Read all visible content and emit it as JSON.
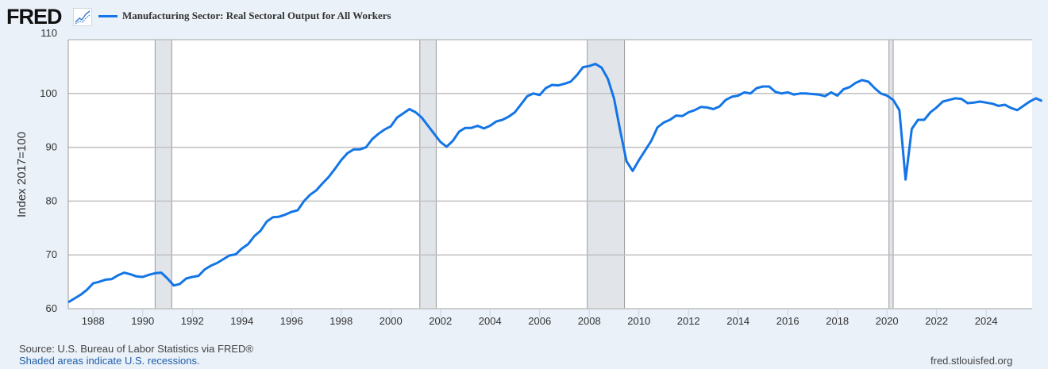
{
  "header": {
    "logo": "FRED",
    "logo_icon": "chart-line-icon"
  },
  "chart_data": {
    "type": "line",
    "title": "Manufacturing Sector: Real Sectoral Output for All Workers",
    "xlabel": "",
    "ylabel": "Index 2017=100",
    "ylim": [
      60,
      110
    ],
    "xlim": [
      1987.0,
      2025.85
    ],
    "yticks": [
      "60",
      "70",
      "80",
      "90",
      "100",
      "110"
    ],
    "xticks": [
      "1988",
      "1990",
      "1992",
      "1994",
      "1996",
      "1998",
      "2000",
      "2002",
      "2004",
      "2006",
      "2008",
      "2010",
      "2012",
      "2014",
      "2016",
      "2018",
      "2020",
      "2022",
      "2024"
    ],
    "grid": true,
    "legend_position": "top-left",
    "series_color": "#1375e6",
    "recessions": [
      [
        1990.5,
        1991.17
      ],
      [
        2001.17,
        2001.83
      ],
      [
        2007.92,
        2009.42
      ],
      [
        2020.08,
        2020.25
      ]
    ],
    "series": [
      {
        "name": "Manufacturing Sector: Real Sectoral Output for All Workers",
        "start": 1987.0,
        "step": 0.25,
        "values": [
          61.2,
          61.9,
          62.6,
          63.5,
          64.7,
          65.0,
          65.4,
          65.5,
          66.2,
          66.7,
          66.4,
          66.0,
          65.9,
          66.3,
          66.6,
          66.7,
          65.6,
          64.3,
          64.6,
          65.6,
          65.9,
          66.1,
          67.3,
          68.0,
          68.5,
          69.2,
          69.9,
          70.1,
          71.2,
          72.0,
          73.5,
          74.5,
          76.2,
          77.0,
          77.1,
          77.5,
          78.0,
          78.3,
          80.0,
          81.2,
          82.0,
          83.3,
          84.5,
          86.0,
          87.6,
          88.9,
          89.6,
          89.6,
          90.0,
          91.5,
          92.5,
          93.3,
          93.9,
          95.5,
          96.3,
          97.1,
          96.5,
          95.5,
          94.0,
          92.5,
          91.0,
          90.1,
          91.2,
          92.9,
          93.6,
          93.6,
          94.0,
          93.5,
          94.0,
          94.8,
          95.1,
          95.7,
          96.5,
          98.0,
          99.5,
          100.0,
          99.7,
          101.0,
          101.6,
          101.5,
          101.8,
          102.2,
          103.4,
          104.9,
          105.1,
          105.5,
          104.8,
          102.7,
          99.0,
          93.0,
          87.4,
          85.6,
          87.6,
          89.4,
          91.2,
          93.7,
          94.6,
          95.1,
          95.9,
          95.8,
          96.5,
          96.9,
          97.5,
          97.4,
          97.1,
          97.6,
          98.8,
          99.4,
          99.6,
          100.2,
          100.0,
          101.0,
          101.3,
          101.3,
          100.3,
          100.0,
          100.2,
          99.8,
          100.0,
          100.0,
          99.9,
          99.8,
          99.5,
          100.2,
          99.6,
          100.8,
          101.2,
          102.0,
          102.5,
          102.2,
          101.0,
          100.0,
          99.6,
          98.8,
          96.9,
          84.0,
          93.4,
          95.1,
          95.1,
          96.5,
          97.4,
          98.5,
          98.8,
          99.1,
          99.0,
          98.2,
          98.3,
          98.5,
          98.3,
          98.1,
          97.7,
          97.9,
          97.3,
          96.9,
          97.7,
          98.5,
          99.1,
          98.6
        ]
      }
    ]
  },
  "footer": {
    "source": "Source: U.S. Bureau of Labor Statistics via FRED®",
    "note": "Shaded areas indicate U.S. recessions.",
    "site": "fred.stlouisfed.org"
  }
}
